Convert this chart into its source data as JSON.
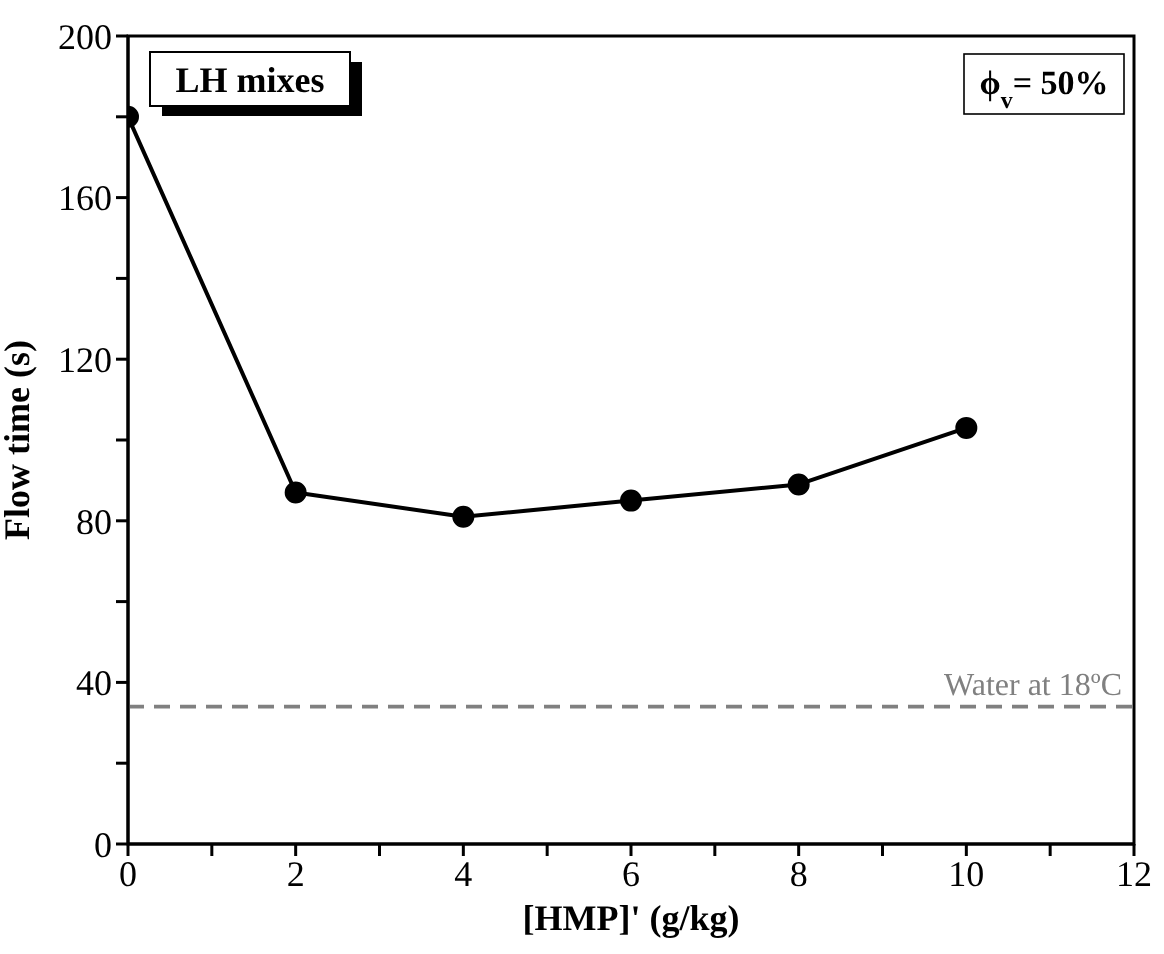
{
  "chart_data": {
    "type": "line",
    "xlabel": "[HMP]' (g/kg)",
    "ylabel": "Flow time (s)",
    "x": [
      0,
      2,
      4,
      6,
      8,
      10
    ],
    "series": [
      {
        "color": "#000000",
        "values": [
          180,
          87,
          81,
          85,
          89,
          103
        ]
      }
    ],
    "xlim": [
      0,
      12
    ],
    "xticks": [
      0,
      {
        "value": 1,
        "label": null
      },
      2,
      {
        "value": 3,
        "label": null
      },
      4,
      {
        "value": 5,
        "label": null
      },
      6,
      {
        "value": 7,
        "label": null
      },
      8,
      {
        "value": 9,
        "label": null
      },
      10,
      {
        "value": 11,
        "label": null
      },
      12
    ],
    "ylim": [
      0,
      200
    ],
    "yticks": [
      0,
      {
        "value": 20,
        "label": null
      },
      40,
      {
        "value": 60,
        "label": null
      },
      80,
      {
        "value": 100,
        "label": null
      },
      120,
      {
        "value": 140,
        "label": null
      },
      160,
      {
        "value": 180,
        "label": null
      },
      200
    ],
    "ref_lines": [
      {
        "axis": "y",
        "value": 34,
        "label": "Water at 18ºC",
        "color": "#808080",
        "line_style": "dashed"
      }
    ],
    "annotations": [
      "LH mixes",
      "ϕ$_{v}$= 50%"
    ],
    "marker": "circle",
    "line_style": "solid",
    "grid": false
  }
}
